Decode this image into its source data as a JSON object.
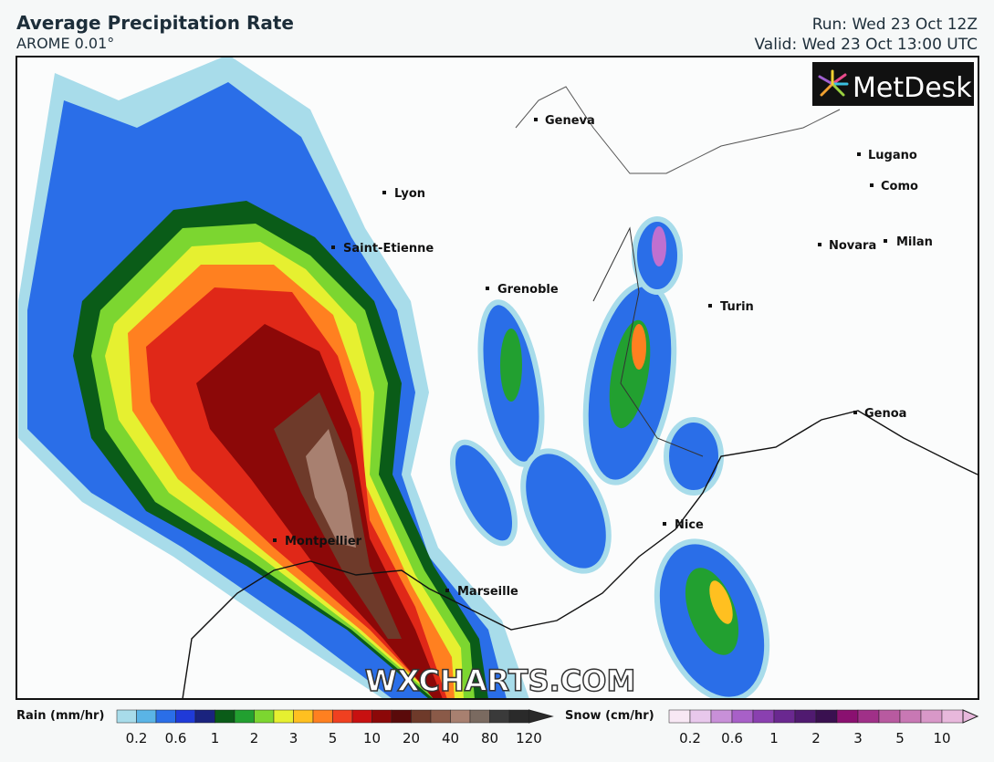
{
  "header": {
    "title": "Average Precipitation Rate",
    "subtitle": "AROME 0.01°",
    "run": "Run: Wed 23 Oct 12Z",
    "valid": "Valid: Wed 23 Oct 13:00 UTC"
  },
  "logo": "MetDesk",
  "cities": [
    "Geneva",
    "Lyon",
    "Saint-Etienne",
    "Grenoble",
    "Montpellier",
    "Marseille",
    "Nice",
    "Turin",
    "Genoa",
    "Lugano",
    "Como",
    "Novara",
    "Milan"
  ],
  "watermark": "WXCHARTS.COM",
  "legend": {
    "rain": {
      "label": "Rain (mm/hr)",
      "ticks": [
        0.2,
        0.6,
        1,
        2,
        3,
        5,
        10,
        20,
        40,
        80,
        120
      ]
    },
    "snow": {
      "label": "Snow (cm/hr)",
      "ticks": [
        0.2,
        0.6,
        1,
        2,
        3,
        5,
        10
      ]
    }
  }
}
